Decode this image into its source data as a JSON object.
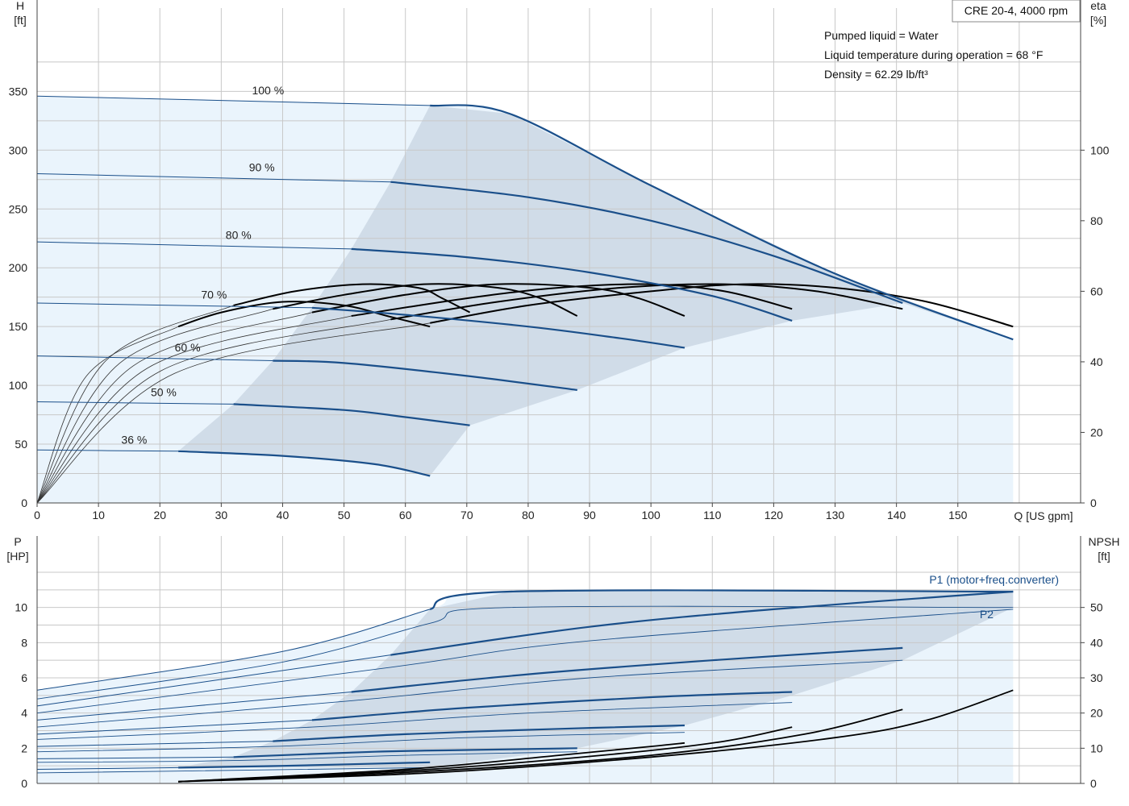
{
  "chart_data": [
    {
      "type": "line",
      "title": "CRE 20-4, 4000 rpm",
      "annotations": [
        "Pumped liquid = Water",
        "Liquid temperature during operation = 68 °F",
        "Density = 62.29 lb/ft³"
      ],
      "xlabel": "Q [US gpm]",
      "ylabel": "H",
      "yunit": "[ft]",
      "y2label": "eta",
      "y2unit": "[%]",
      "xlim": [
        0,
        170
      ],
      "ylim": [
        0,
        390
      ],
      "y2lim": [
        0,
        130
      ],
      "xticks": [
        0,
        10,
        20,
        30,
        40,
        50,
        60,
        70,
        80,
        90,
        100,
        110,
        120,
        130,
        140,
        150
      ],
      "yticks": [
        0,
        50,
        100,
        150,
        200,
        250,
        300,
        350
      ],
      "y2ticks": [
        0,
        20,
        40,
        60,
        80,
        100
      ],
      "grid": true,
      "colors": {
        "head": "#1a4f8a",
        "eta": "#000000",
        "operating_area": "#d0dce8",
        "extended_area": "#eaf4fc"
      },
      "head_curves": [
        {
          "label": "100 %",
          "qmin": 64,
          "qmax": 159,
          "points": [
            [
              0,
              346
            ],
            [
              64,
              338
            ],
            [
              77,
              331
            ],
            [
              100,
              270
            ],
            [
              130,
              195
            ],
            [
              159,
              139
            ]
          ]
        },
        {
          "label": "90 %",
          "qmin": 57.6,
          "qmax": 141,
          "points": [
            [
              0,
              280
            ],
            [
              57.6,
              273
            ],
            [
              80,
              260
            ],
            [
              100,
              240
            ],
            [
              120,
              210
            ],
            [
              141,
              170
            ]
          ]
        },
        {
          "label": "80 %",
          "qmin": 51.2,
          "qmax": 123,
          "points": [
            [
              0,
              222
            ],
            [
              51.2,
              216
            ],
            [
              70,
              209
            ],
            [
              90,
              196
            ],
            [
              110,
              176
            ],
            [
              123,
              155
            ]
          ]
        },
        {
          "label": "70 %",
          "qmin": 44.8,
          "qmax": 105.5,
          "points": [
            [
              0,
              170
            ],
            [
              44.8,
              166
            ],
            [
              60,
              160
            ],
            [
              80,
              150
            ],
            [
              95,
              140
            ],
            [
              105.5,
              132
            ]
          ]
        },
        {
          "label": "60 %",
          "qmin": 38.4,
          "qmax": 88,
          "points": [
            [
              0,
              125
            ],
            [
              38.4,
              121
            ],
            [
              50,
              119
            ],
            [
              70,
              108
            ],
            [
              88,
              96
            ]
          ]
        },
        {
          "label": "50 %",
          "qmin": 32,
          "qmax": 70.5,
          "points": [
            [
              0,
              86
            ],
            [
              32,
              84
            ],
            [
              50,
              79
            ],
            [
              60,
              73
            ],
            [
              70.5,
              66
            ]
          ]
        },
        {
          "label": "36 %",
          "qmin": 23,
          "qmax": 64,
          "points": [
            [
              0,
              45
            ],
            [
              23,
              44
            ],
            [
              40,
              40
            ],
            [
              55,
              33
            ],
            [
              64,
              23
            ]
          ]
        }
      ],
      "eta_curves": [
        {
          "name": "eta 100 %",
          "qmin": 64,
          "qmax": 159,
          "points": [
            [
              64,
              51
            ],
            [
              80,
              56
            ],
            [
              100,
              60
            ],
            [
              115,
              62
            ],
            [
              130,
              61
            ],
            [
              145,
              57
            ],
            [
              159,
              50
            ]
          ]
        },
        {
          "name": "eta 90 %",
          "qmin": 57.6,
          "qmax": 141,
          "points": [
            [
              57.6,
              52
            ],
            [
              75,
              57
            ],
            [
              95,
              61
            ],
            [
              112,
              62
            ],
            [
              127,
              60
            ],
            [
              141,
              55
            ]
          ]
        },
        {
          "name": "eta 80 %",
          "qmin": 51.2,
          "qmax": 123,
          "points": [
            [
              51.2,
              53
            ],
            [
              70,
              58
            ],
            [
              85,
              61
            ],
            [
              100,
              62
            ],
            [
              112,
              60
            ],
            [
              123,
              55
            ]
          ]
        },
        {
          "name": "eta 70 %",
          "qmin": 44.8,
          "qmax": 105.5,
          "points": [
            [
              44.8,
              54
            ],
            [
              60,
              59
            ],
            [
              75,
              62
            ],
            [
              90,
              61
            ],
            [
              98,
              58
            ],
            [
              105.5,
              53
            ]
          ]
        },
        {
          "name": "eta 60 %",
          "qmin": 38.4,
          "qmax": 88,
          "points": [
            [
              38.4,
              55
            ],
            [
              50,
              59
            ],
            [
              63,
              62
            ],
            [
              75,
              61
            ],
            [
              82,
              58
            ],
            [
              88,
              53
            ]
          ]
        },
        {
          "name": "eta 50 %",
          "qmin": 32,
          "qmax": 70.5,
          "points": [
            [
              32,
              56
            ],
            [
              42,
              60
            ],
            [
              53,
              62
            ],
            [
              62,
              61
            ],
            [
              66,
              58
            ],
            [
              70.5,
              54
            ]
          ]
        },
        {
          "name": "eta 36 %",
          "qmin": 23,
          "qmax": 64,
          "points": [
            [
              23,
              50
            ],
            [
              30,
              54
            ],
            [
              40,
              57
            ],
            [
              50,
              56
            ],
            [
              57,
              53
            ],
            [
              64,
              50
            ]
          ]
        }
      ]
    },
    {
      "type": "line",
      "xlabel": "Q [US gpm]",
      "ylabel": "P",
      "yunit": "[HP]",
      "y2label": "NPSH",
      "y2unit": "[ft]",
      "xlim": [
        0,
        170
      ],
      "ylim": [
        0,
        12
      ],
      "y2lim": [
        0,
        60
      ],
      "yticks": [
        0,
        2,
        4,
        6,
        8,
        10
      ],
      "y2ticks": [
        0,
        10,
        20,
        30,
        40,
        50
      ],
      "grid": true,
      "series_labels": [
        "P1 (motor+freq.converter)",
        "P2"
      ],
      "p1_curves": [
        {
          "speed": "100 %",
          "qmin": 64,
          "qmax": 159,
          "points": [
            [
              0,
              5.3
            ],
            [
              40,
              7.5
            ],
            [
              64,
              9.9
            ],
            [
              77,
              10.9
            ],
            [
              159,
              10.9
            ]
          ]
        },
        {
          "speed": "90 %",
          "qmin": 57.6,
          "qmax": 141,
          "points": [
            [
              0,
              4.4
            ],
            [
              57.6,
              7.3
            ],
            [
              90,
              8.9
            ],
            [
              120,
              9.9
            ],
            [
              159,
              10.9
            ]
          ]
        },
        {
          "speed": "80 %",
          "qmin": 51.2,
          "qmax": 123,
          "points": [
            [
              0,
              3.6
            ],
            [
              51.2,
              5.2
            ],
            [
              80,
              6.2
            ],
            [
              110,
              7.0
            ],
            [
              141,
              7.7
            ]
          ]
        },
        {
          "speed": "70 %",
          "qmin": 44.8,
          "qmax": 105.5,
          "points": [
            [
              0,
              2.8
            ],
            [
              44.8,
              3.6
            ],
            [
              70,
              4.3
            ],
            [
              100,
              4.9
            ],
            [
              123,
              5.2
            ]
          ]
        },
        {
          "speed": "60 %",
          "qmin": 38.4,
          "qmax": 88,
          "points": [
            [
              0,
              2.1
            ],
            [
              38.4,
              2.4
            ],
            [
              60,
              2.8
            ],
            [
              85,
              3.1
            ],
            [
              105.5,
              3.3
            ]
          ]
        },
        {
          "speed": "50 %",
          "qmin": 32,
          "qmax": 70.5,
          "points": [
            [
              0,
              1.4
            ],
            [
              32,
              1.5
            ],
            [
              55,
              1.8
            ],
            [
              70,
              1.9
            ],
            [
              88,
              2.0
            ]
          ]
        },
        {
          "speed": "36 %",
          "qmin": 23,
          "qmax": 64,
          "points": [
            [
              0,
              0.8
            ],
            [
              23,
              0.9
            ],
            [
              40,
              1.0
            ],
            [
              64,
              1.2
            ]
          ]
        }
      ],
      "p2_curves": [
        {
          "speed": "100 %",
          "points": [
            [
              0,
              4.8
            ],
            [
              40,
              6.9
            ],
            [
              64,
              9.1
            ],
            [
              77,
              10.0
            ],
            [
              159,
              10.0
            ]
          ]
        },
        {
          "speed": "90 %",
          "points": [
            [
              0,
              4.0
            ],
            [
              57.6,
              6.6
            ],
            [
              90,
              8.1
            ],
            [
              159,
              9.9
            ]
          ]
        },
        {
          "speed": "80 %",
          "points": [
            [
              0,
              3.2
            ],
            [
              51.2,
              4.7
            ],
            [
              90,
              6.0
            ],
            [
              141,
              7.0
            ]
          ]
        },
        {
          "speed": "70 %",
          "points": [
            [
              0,
              2.5
            ],
            [
              44.8,
              3.2
            ],
            [
              80,
              4.0
            ],
            [
              123,
              4.6
            ]
          ]
        },
        {
          "speed": "60 %",
          "points": [
            [
              0,
              1.8
            ],
            [
              38.4,
              2.1
            ],
            [
              70,
              2.6
            ],
            [
              105.5,
              2.9
            ]
          ]
        },
        {
          "speed": "50 %",
          "points": [
            [
              0,
              1.2
            ],
            [
              32,
              1.3
            ],
            [
              60,
              1.6
            ],
            [
              88,
              1.8
            ]
          ]
        },
        {
          "speed": "36 %",
          "points": [
            [
              0,
              0.6
            ],
            [
              23,
              0.7
            ],
            [
              64,
              0.9
            ]
          ]
        }
      ],
      "npsh_curves": [
        {
          "speed": "100 %",
          "points": [
            [
              23,
              0.5
            ],
            [
              64,
              3.0
            ],
            [
              100,
              7.5
            ],
            [
              130,
              13.0
            ],
            [
              145,
              18.0
            ],
            [
              159,
              26.5
            ]
          ]
        },
        {
          "speed": "90 %",
          "points": [
            [
              23,
              0.5
            ],
            [
              64,
              3.5
            ],
            [
              100,
              8.0
            ],
            [
              125,
              14.0
            ],
            [
              141,
              21.0
            ]
          ]
        },
        {
          "speed": "80 %",
          "points": [
            [
              23,
              0.5
            ],
            [
              64,
              4.0
            ],
            [
              95,
              8.5
            ],
            [
              112,
              12.0
            ],
            [
              123,
              16.0
            ]
          ]
        },
        {
          "speed": "70 %",
          "points": [
            [
              23,
              0.5
            ],
            [
              60,
              4.0
            ],
            [
              85,
              8.0
            ],
            [
              100,
              10.5
            ],
            [
              105.5,
              11.5
            ]
          ]
        }
      ]
    }
  ]
}
